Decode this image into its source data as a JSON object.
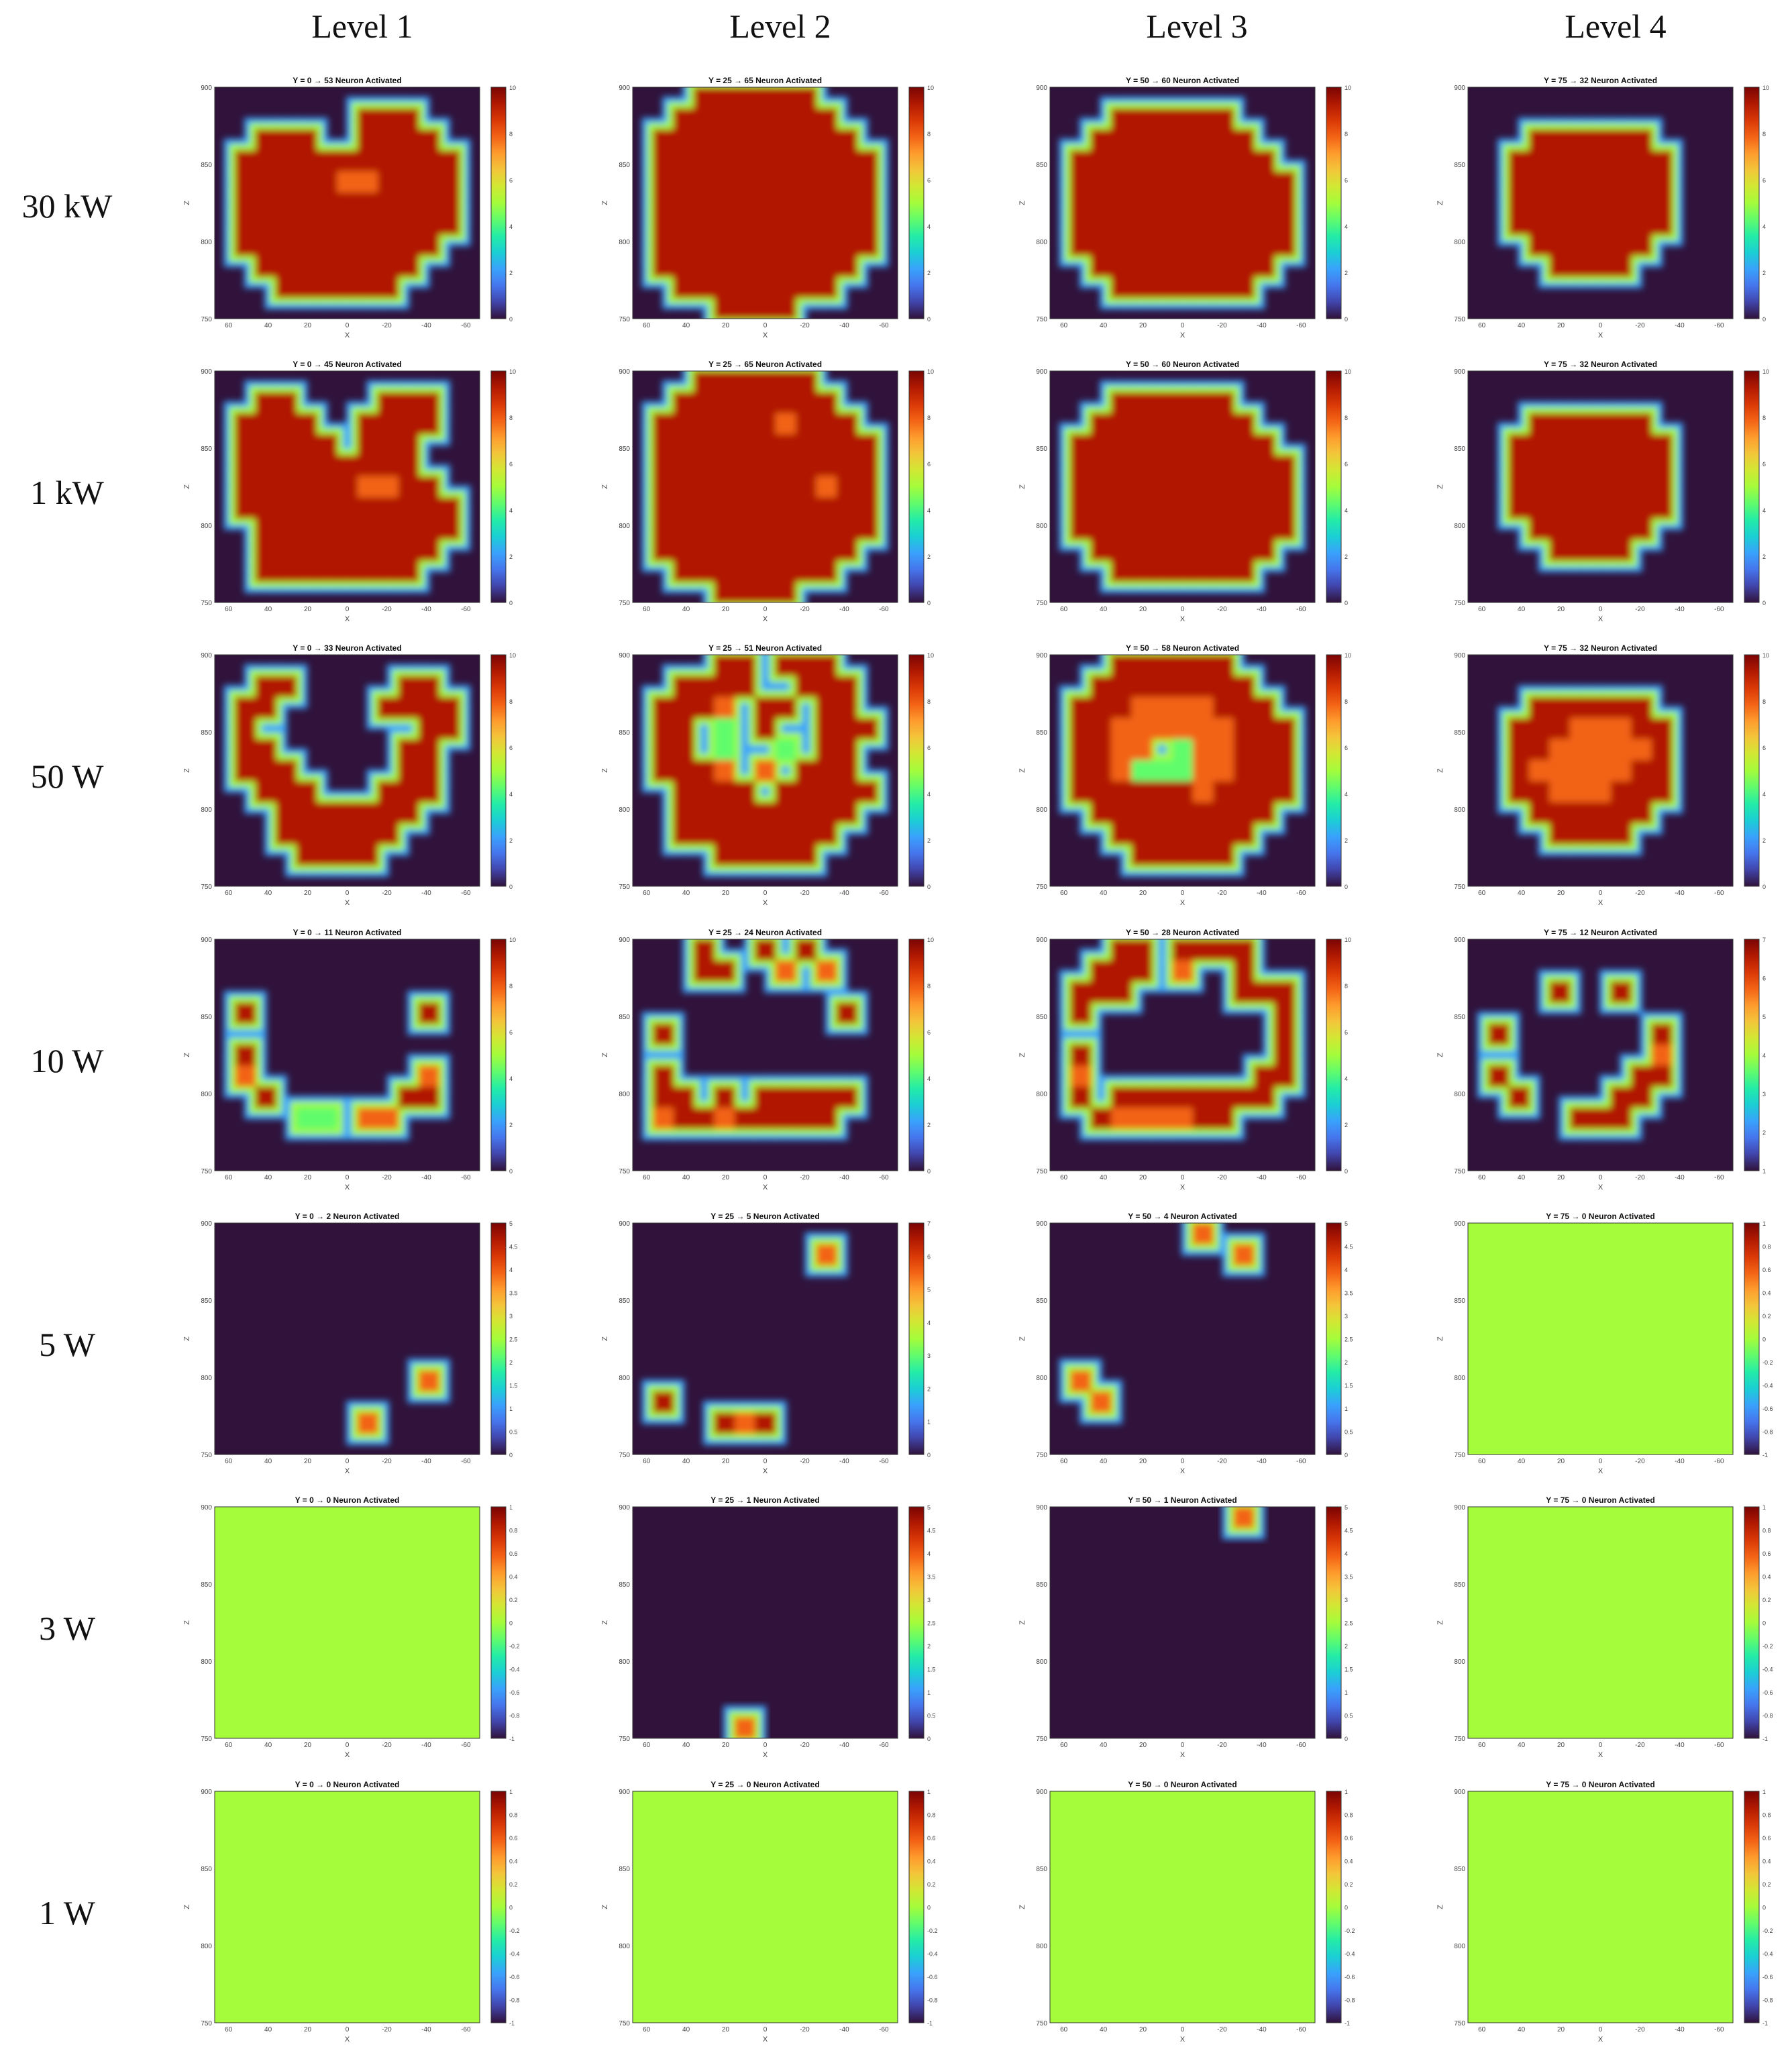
{
  "columns": [
    "Level 1",
    "Level 2",
    "Level 3",
    "Level 4"
  ],
  "rows": [
    "30 kW",
    "1 kW",
    "50 W",
    "10 W",
    "5 W",
    "3 W",
    "1 W"
  ],
  "chart_data": {
    "type": "heatmap",
    "axes": {
      "xlabel": "X",
      "ylabel": "Z",
      "xticks": [
        "60",
        "40",
        "20",
        "0",
        "-20",
        "-40",
        "-60"
      ],
      "zticks": [
        "900",
        "850",
        "800",
        "750"
      ],
      "xlim": [
        67,
        -67
      ],
      "zlim": [
        750,
        900
      ]
    },
    "colormap": [
      "#30123b",
      "#4145ab",
      "#4675ed",
      "#39a2fc",
      "#1bcfd4",
      "#24eca6",
      "#61fc6c",
      "#a4fc3b",
      "#d1e834",
      "#f3c63a",
      "#fe9b2d",
      "#f36315",
      "#d93806",
      "#b11901",
      "#7a0403"
    ],
    "panels": [
      {
        "row": 0,
        "col": 0,
        "title": "Y = 0  →  53 Neuron Activated",
        "cbar_ticks": [
          "10",
          "8",
          "6",
          "4",
          "2",
          "0"
        ],
        "flat": false,
        "mask": [
          "0000000000000",
          "0000000111000",
          "0011100111100",
          "0111111111110",
          "0111112211110",
          "0111111111110",
          "0111111111110",
          "0111111111100",
          "0011111111000",
          "0001111110000",
          "0000000000000"
        ]
      },
      {
        "row": 0,
        "col": 1,
        "title": "Y = 25  →  65 Neuron Activated",
        "cbar_ticks": [
          "10",
          "8",
          "6",
          "4",
          "2",
          "0"
        ],
        "flat": false,
        "mask": [
          "0001111110000",
          "0011111111000",
          "0111111111100",
          "0111111111110",
          "0111111111110",
          "0111111111110",
          "0111111111110",
          "0111111111110",
          "0111111111100",
          "0011111111000",
          "0000111100000"
        ]
      },
      {
        "row": 0,
        "col": 2,
        "title": "Y = 50  →  60 Neuron Activated",
        "cbar_ticks": [
          "10",
          "8",
          "6",
          "4",
          "2",
          "0"
        ],
        "flat": false,
        "mask": [
          "0000000000000",
          "0001111110000",
          "0011111111000",
          "0111111111100",
          "0111111111110",
          "0111111111110",
          "0111111111110",
          "0111111111110",
          "0011111111100",
          "0001111111000",
          "0000000000000"
        ]
      },
      {
        "row": 0,
        "col": 3,
        "title": "Y = 75  →  32 Neuron Activated",
        "cbar_ticks": [
          "10",
          "8",
          "6",
          "4",
          "2",
          "0"
        ],
        "flat": false,
        "mask": [
          "0000000000000",
          "0000000000000",
          "0001111110000",
          "0011111111000",
          "0011111111000",
          "0011111111000",
          "0011111111000",
          "0001111110000",
          "0000111100000",
          "0000000000000",
          "0000000000000"
        ]
      },
      {
        "row": 1,
        "col": 0,
        "title": "Y = 0  →  45 Neuron Activated",
        "cbar_ticks": [
          "10",
          "8",
          "6",
          "4",
          "2",
          "0"
        ],
        "flat": false,
        "mask": [
          "0000000000000",
          "0011000011100",
          "0111100111100",
          "0111110111000",
          "0111111111000",
          "0111111221100",
          "0111111111110",
          "0011111111110",
          "0011111111100",
          "0011111111000",
          "0000000000000"
        ]
      },
      {
        "row": 1,
        "col": 1,
        "title": "Y = 25  →  65 Neuron Activated",
        "cbar_ticks": [
          "10",
          "8",
          "6",
          "4",
          "2",
          "0"
        ],
        "flat": false,
        "mask": [
          "0001111110000",
          "0011111111000",
          "0111111211100",
          "0111111111110",
          "0111111111110",
          "0111111112110",
          "0111111111110",
          "0111111111110",
          "0111111111100",
          "0011111111000",
          "0000111100000"
        ]
      },
      {
        "row": 1,
        "col": 2,
        "title": "Y = 50  →  60 Neuron Activated",
        "cbar_ticks": [
          "10",
          "8",
          "6",
          "4",
          "2",
          "0"
        ],
        "flat": false,
        "mask": [
          "0000000000000",
          "0001111110000",
          "0011111111000",
          "0111111111100",
          "0111111111110",
          "0111111111110",
          "0111111111110",
          "0111111111110",
          "0011111111100",
          "0001111111000",
          "0000000000000"
        ]
      },
      {
        "row": 1,
        "col": 3,
        "title": "Y = 75  →  32 Neuron Activated",
        "cbar_ticks": [
          "10",
          "8",
          "6",
          "4",
          "2",
          "0"
        ],
        "flat": false,
        "mask": [
          "0000000000000",
          "0000000000000",
          "0001111110000",
          "0011111111000",
          "0011111111000",
          "0011111111000",
          "0011111111000",
          "0001111110000",
          "0000111100000",
          "0000000000000",
          "0000000000000"
        ]
      },
      {
        "row": 2,
        "col": 0,
        "title": "Y = 0  →  33 Neuron Activated",
        "cbar_ticks": [
          "10",
          "8",
          "6",
          "4",
          "2",
          "0"
        ],
        "flat": false,
        "mask": [
          "0000000000000",
          "0011000001100",
          "0110000011110",
          "0100000000110",
          "0110000001100",
          "0111000001100",
          "0011100011100",
          "0001111111000",
          "0001111110000",
          "0000111100000",
          "0000000000000"
        ]
      },
      {
        "row": 2,
        "col": 1,
        "title": "Y = 25  →  51 Neuron Activated",
        "cbar_ticks": [
          "10",
          "8",
          "6",
          "4",
          "2",
          "0"
        ],
        "flat": false,
        "mask": [
          "0000110111000",
          "0011110011100",
          "0111201101100",
          "0110301001110",
          "0110300301100",
          "0111202011100",
          "0011110111110",
          "0011111111100",
          "0011111111000",
          "0000111110000",
          "0000000000000"
        ]
      },
      {
        "row": 2,
        "col": 2,
        "title": "Y = 50  →  58 Neuron Activated",
        "cbar_ticks": [
          "10",
          "8",
          "6",
          "4",
          "2",
          "0"
        ],
        "flat": false,
        "mask": [
          "0001111110000",
          "0011111111000",
          "0111222211100",
          "0112222221110",
          "0112203221110",
          "0112333221110",
          "0111111211110",
          "0011111111100",
          "0001111111000",
          "0000111110000",
          "0000000000000"
        ]
      },
      {
        "row": 2,
        "col": 3,
        "title": "Y = 75  →  32 Neuron Activated",
        "cbar_ticks": [
          "10",
          "8",
          "6",
          "4",
          "2",
          "0"
        ],
        "flat": false,
        "mask": [
          "0000000000000",
          "0000000000000",
          "0001111110000",
          "0011122211000",
          "0011222221000",
          "0012222211000",
          "0011222111000",
          "0001111110000",
          "0000111100000",
          "0000000000000",
          "0000000000000"
        ]
      },
      {
        "row": 3,
        "col": 0,
        "title": "Y = 0  →  11 Neuron Activated",
        "cbar_ticks": [
          "10",
          "8",
          "6",
          "4",
          "2",
          "0"
        ],
        "flat": false,
        "mask": [
          "0000000000000",
          "0000000000000",
          "0000000000000",
          "0100000000100",
          "0000000000000",
          "0100000000000",
          "0200000000200",
          "0010000001100",
          "0000330220000",
          "0000000000000",
          "0000000000000"
        ]
      },
      {
        "row": 3,
        "col": 1,
        "title": "Y = 25  →  24 Neuron Activated",
        "cbar_ticks": [
          "10",
          "8",
          "6",
          "4",
          "2",
          "0"
        ],
        "flat": false,
        "mask": [
          "0001001010000",
          "0001100202000",
          "0000000000000",
          "0000000000100",
          "0100000000000",
          "0000000000000",
          "0100000000000",
          "0110101111100",
          "0211211111000",
          "0000000000000",
          "0000000000000"
        ]
      },
      {
        "row": 3,
        "col": 2,
        "title": "Y = 50  →  28 Neuron Activated",
        "cbar_ticks": [
          "10",
          "8",
          "6",
          "4",
          "2",
          "0"
        ],
        "flat": false,
        "mask": [
          "0001101111000",
          "0011102001000",
          "0111000001110",
          "0100000000010",
          "0000000000010",
          "0100000000010",
          "0200000000110",
          "0101111111100",
          "0012222110000",
          "0000000000000",
          "0000000000000"
        ]
      },
      {
        "row": 3,
        "col": 3,
        "title": "Y = 75  →  12 Neuron Activated",
        "cbar_ticks": [
          "7",
          "6",
          "5",
          "4",
          "3",
          "2",
          "1"
        ],
        "flat": false,
        "mask": [
          "0000000000000",
          "0000000000000",
          "0000100100000",
          "0000000000000",
          "0100000001000",
          "0000000002000",
          "0100000011000",
          "0010000110000",
          "0000011100000",
          "0000000000000",
          "0000000000000"
        ]
      },
      {
        "row": 4,
        "col": 0,
        "title": "Y = 0  →  2 Neuron Activated",
        "cbar_ticks": [
          "5",
          "4.5",
          "4",
          "3.5",
          "3",
          "2.5",
          "2",
          "1.5",
          "1",
          "0.5",
          "0"
        ],
        "flat": false,
        "mask": [
          "0000000000000",
          "0000000000000",
          "0000000000000",
          "0000000000000",
          "0000000000000",
          "0000000000000",
          "0000000000000",
          "0000000000200",
          "0000000000000",
          "0000000200000",
          "0000000000000"
        ]
      },
      {
        "row": 4,
        "col": 1,
        "title": "Y = 25  →  5 Neuron Activated",
        "cbar_ticks": [
          "7",
          "6",
          "5",
          "4",
          "3",
          "2",
          "1",
          "0"
        ],
        "flat": false,
        "mask": [
          "0000000000000",
          "0000000002000",
          "0000000000000",
          "0000000000000",
          "0000000000000",
          "0000000000000",
          "0000000000000",
          "0000000000000",
          "0100000000000",
          "0000121000000",
          "0000000000000"
        ]
      },
      {
        "row": 4,
        "col": 2,
        "title": "Y = 50  →  4 Neuron Activated",
        "cbar_ticks": [
          "5",
          "4.5",
          "4",
          "3.5",
          "3",
          "2.5",
          "2",
          "1.5",
          "1",
          "0.5",
          "0"
        ],
        "flat": false,
        "mask": [
          "0000000200000",
          "0000000002000",
          "0000000000000",
          "0000000000000",
          "0000000000000",
          "0000000000000",
          "0000000000000",
          "0200000000000",
          "0020000000000",
          "0000000000000",
          "0000000000000"
        ]
      },
      {
        "row": 4,
        "col": 3,
        "title": "Y = 75  →  0 Neuron Activated",
        "cbar_ticks": [
          "1",
          "0.8",
          "0.6",
          "0.4",
          "0.2",
          "0",
          "-0.2",
          "-0.4",
          "-0.6",
          "-0.8",
          "-1"
        ],
        "flat": true,
        "mask": []
      },
      {
        "row": 5,
        "col": 0,
        "title": "Y = 0  →  0 Neuron Activated",
        "cbar_ticks": [
          "1",
          "0.8",
          "0.6",
          "0.4",
          "0.2",
          "0",
          "-0.2",
          "-0.4",
          "-0.6",
          "-0.8",
          "-1"
        ],
        "flat": true,
        "mask": []
      },
      {
        "row": 5,
        "col": 1,
        "title": "Y = 25  →  1 Neuron Activated",
        "cbar_ticks": [
          "5",
          "4.5",
          "4",
          "3.5",
          "3",
          "2.5",
          "2",
          "1.5",
          "1",
          "0.5",
          "0"
        ],
        "flat": false,
        "mask": [
          "0000000000000",
          "0000000000000",
          "0000000000000",
          "0000000000000",
          "0000000000000",
          "0000000000000",
          "0000000000000",
          "0000000000000",
          "0000000000000",
          "0000000000000",
          "0000020000000"
        ]
      },
      {
        "row": 5,
        "col": 2,
        "title": "Y = 50  →  1 Neuron Activated",
        "cbar_ticks": [
          "5",
          "4.5",
          "4",
          "3.5",
          "3",
          "2.5",
          "2",
          "1.5",
          "1",
          "0.5",
          "0"
        ],
        "flat": false,
        "mask": [
          "0000000002000",
          "0000000000000",
          "0000000000000",
          "0000000000000",
          "0000000000000",
          "0000000000000",
          "0000000000000",
          "0000000000000",
          "0000000000000",
          "0000000000000",
          "0000000000000"
        ]
      },
      {
        "row": 5,
        "col": 3,
        "title": "Y = 75  →  0 Neuron Activated",
        "cbar_ticks": [
          "1",
          "0.8",
          "0.6",
          "0.4",
          "0.2",
          "0",
          "-0.2",
          "-0.4",
          "-0.6",
          "-0.8",
          "-1"
        ],
        "flat": true,
        "mask": []
      },
      {
        "row": 6,
        "col": 0,
        "title": "Y = 0  →  0 Neuron Activated",
        "cbar_ticks": [
          "1",
          "0.8",
          "0.6",
          "0.4",
          "0.2",
          "0",
          "-0.2",
          "-0.4",
          "-0.6",
          "-0.8",
          "-1"
        ],
        "flat": true,
        "mask": []
      },
      {
        "row": 6,
        "col": 1,
        "title": "Y = 25  →  0 Neuron Activated",
        "cbar_ticks": [
          "1",
          "0.8",
          "0.6",
          "0.4",
          "0.2",
          "0",
          "-0.2",
          "-0.4",
          "-0.6",
          "-0.8",
          "-1"
        ],
        "flat": true,
        "mask": []
      },
      {
        "row": 6,
        "col": 2,
        "title": "Y = 50  →  0 Neuron Activated",
        "cbar_ticks": [
          "1",
          "0.8",
          "0.6",
          "0.4",
          "0.2",
          "0",
          "-0.2",
          "-0.4",
          "-0.6",
          "-0.8",
          "-1"
        ],
        "flat": true,
        "mask": []
      },
      {
        "row": 6,
        "col": 3,
        "title": "Y = 75  →  0 Neuron Activated",
        "cbar_ticks": [
          "1",
          "0.8",
          "0.6",
          "0.4",
          "0.2",
          "0",
          "-0.2",
          "-0.4",
          "-0.6",
          "-0.8",
          "-1"
        ],
        "flat": true,
        "mask": []
      }
    ]
  }
}
